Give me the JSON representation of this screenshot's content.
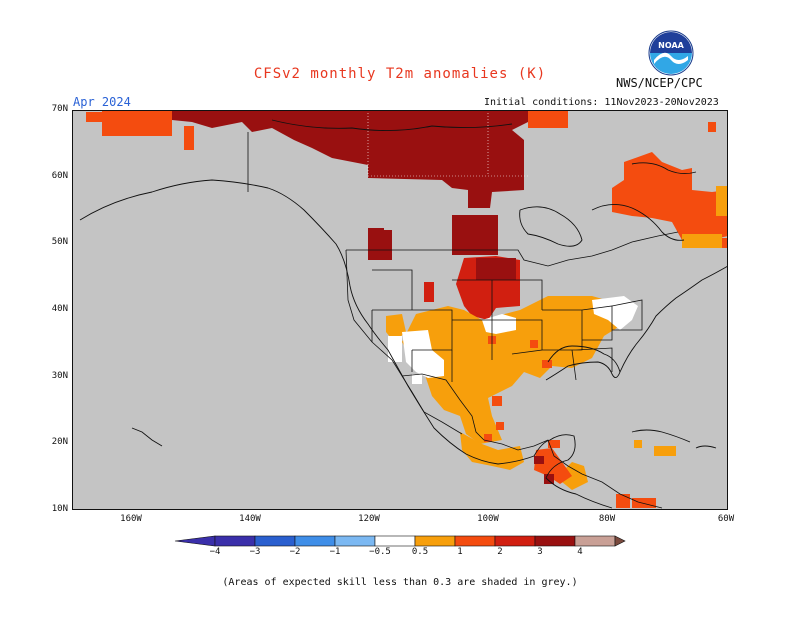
{
  "header": {
    "title": "CFSv2 monthly T2m anomalies (K)",
    "agency": "NWS/NCEP/CPC",
    "month": "Apr 2024",
    "initial_conditions": "Initial conditions: 11Nov2023-20Nov2023",
    "logo_text": "NOAA"
  },
  "map": {
    "lat_labels": [
      "70N",
      "60N",
      "50N",
      "40N",
      "30N",
      "20N",
      "10N"
    ],
    "lon_labels": [
      "160W",
      "140W",
      "120W",
      "100W",
      "80W",
      "60W"
    ],
    "extent": {
      "lon_min": -170,
      "lon_max": -60,
      "lat_min": 10,
      "lat_max": 70
    },
    "no_skill_color": "#c4c4c4"
  },
  "colorbar": {
    "labels": [
      "−4",
      "−3",
      "−2",
      "−1",
      "−0.5",
      "0.5",
      "1",
      "2",
      "3",
      "4"
    ],
    "colors": [
      "#3a2faa",
      "#2a5fcf",
      "#3f8ee8",
      "#7bb8f2",
      "#ffffff",
      "#f79f0c",
      "#f44c0f",
      "#d11f10",
      "#991010",
      "#c9a096",
      "#7a4a3e"
    ]
  },
  "footnote": "(Areas of expected skill less than 0.3 are shaded in grey.)"
}
